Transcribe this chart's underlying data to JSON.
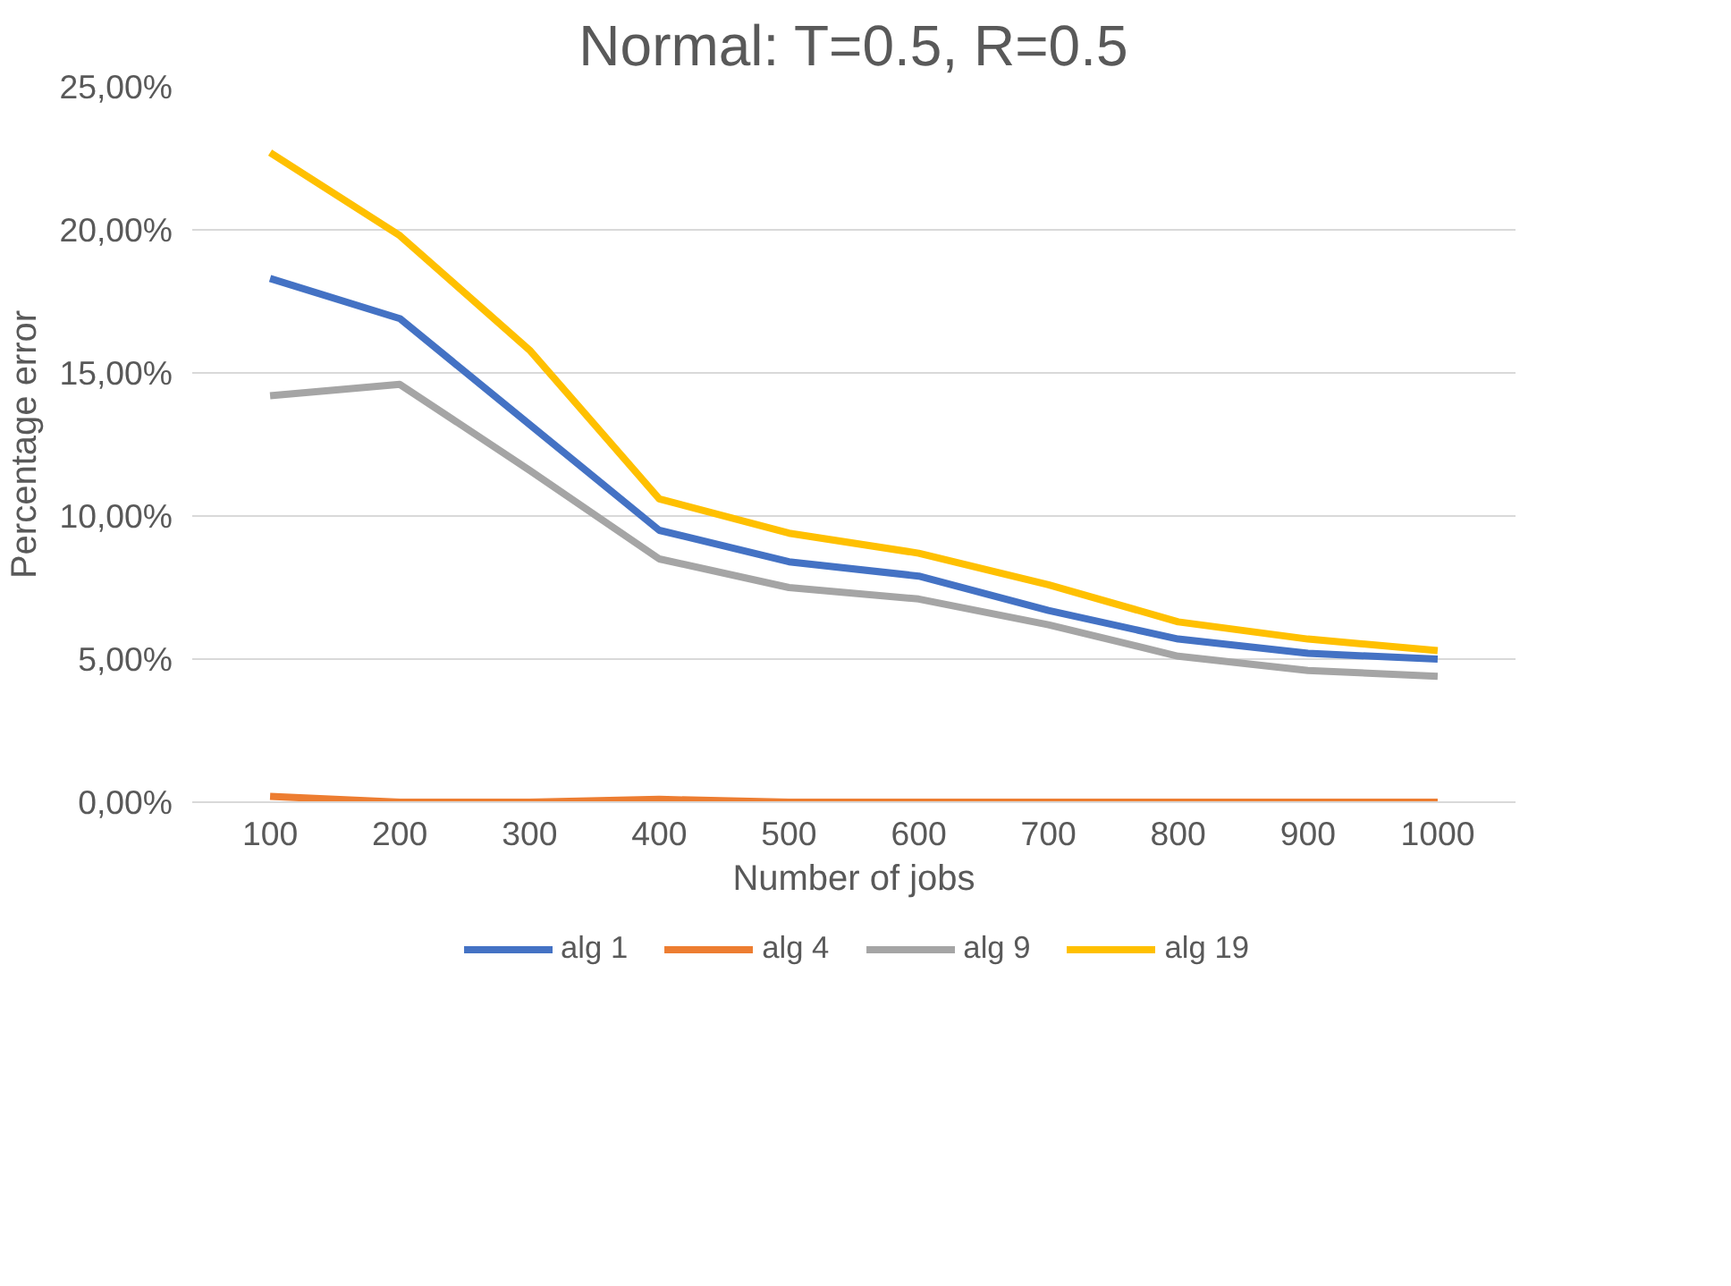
{
  "chart_data": {
    "type": "line",
    "title": "Normal: T=0.5, R=0.5",
    "xlabel": "Number of jobs",
    "ylabel": "Percentage error",
    "categories": [
      "100",
      "200",
      "300",
      "400",
      "500",
      "600",
      "700",
      "800",
      "900",
      "1000"
    ],
    "series": [
      {
        "name": "alg 1",
        "color": "#4472c4",
        "values": [
          18.3,
          16.9,
          13.2,
          9.5,
          8.4,
          7.9,
          6.7,
          5.7,
          5.2,
          5.0
        ]
      },
      {
        "name": "alg 4",
        "color": "#ed7d31",
        "values": [
          0.2,
          0.0,
          0.0,
          0.1,
          0.0,
          0.0,
          0.0,
          0.0,
          0.0,
          0.0
        ]
      },
      {
        "name": "alg 9",
        "color": "#a5a5a5",
        "values": [
          14.2,
          14.6,
          11.6,
          8.5,
          7.5,
          7.1,
          6.2,
          5.1,
          4.6,
          4.4
        ]
      },
      {
        "name": "alg 19",
        "color": "#ffc000",
        "values": [
          22.7,
          19.8,
          15.8,
          10.6,
          9.4,
          8.7,
          7.6,
          6.3,
          5.7,
          5.3
        ]
      }
    ],
    "ylim": [
      0,
      25
    ],
    "yticks": [
      {
        "value": 0,
        "label": "0,00%"
      },
      {
        "value": 5,
        "label": "5,00%"
      },
      {
        "value": 10,
        "label": "10,00%"
      },
      {
        "value": 15,
        "label": "15,00%"
      },
      {
        "value": 20,
        "label": "20,00%"
      },
      {
        "value": 25,
        "label": "25,00%"
      }
    ],
    "grid": "y",
    "legend": "bottom",
    "marker": "none",
    "line_style": "solid"
  }
}
